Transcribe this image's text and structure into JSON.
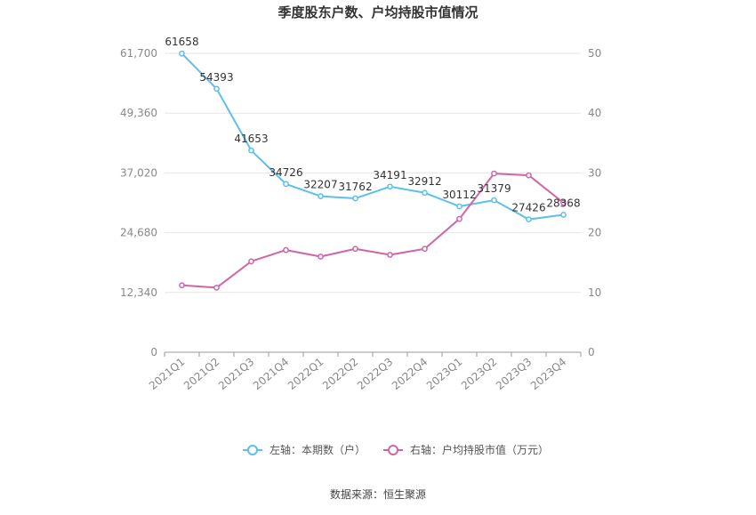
{
  "chart_data": {
    "type": "line",
    "title": "季度股东户数、户均持股市值情况",
    "categories": [
      "2021Q1",
      "2021Q2",
      "2021Q3",
      "2021Q4",
      "2022Q1",
      "2022Q2",
      "2022Q3",
      "2022Q4",
      "2023Q1",
      "2023Q2",
      "2023Q3",
      "2023Q4"
    ],
    "left_axis": {
      "min": 0,
      "max": 61700,
      "ticks": [
        "0",
        "12,340",
        "24,680",
        "37,020",
        "49,360",
        "61,700"
      ]
    },
    "right_axis": {
      "min": 0,
      "max": 50,
      "ticks": [
        "0",
        "10",
        "20",
        "30",
        "40",
        "50"
      ]
    },
    "series": [
      {
        "name": "左轴：本期数（户）",
        "axis": "left",
        "color": "#5bc0eb",
        "values": [
          61658,
          54393,
          41653,
          34726,
          32207,
          31762,
          34191,
          32912,
          30112,
          31379,
          27426,
          28368
        ],
        "labels": [
          "61658",
          "54393",
          "41653",
          "34726",
          "32207",
          "31762",
          "34191",
          "32912",
          "30112",
          "31379",
          "27426",
          "28368"
        ]
      },
      {
        "name": "右轴：户均持股市值（万元）",
        "axis": "right",
        "color": "#d065a6",
        "values": [
          11.2,
          10.8,
          15.2,
          17.1,
          16.0,
          17.3,
          16.3,
          17.3,
          22.3,
          29.9,
          29.6,
          25.0
        ]
      }
    ],
    "grid": true,
    "legend_position": "bottom"
  },
  "footer": {
    "source": "数据来源：恒生聚源"
  }
}
